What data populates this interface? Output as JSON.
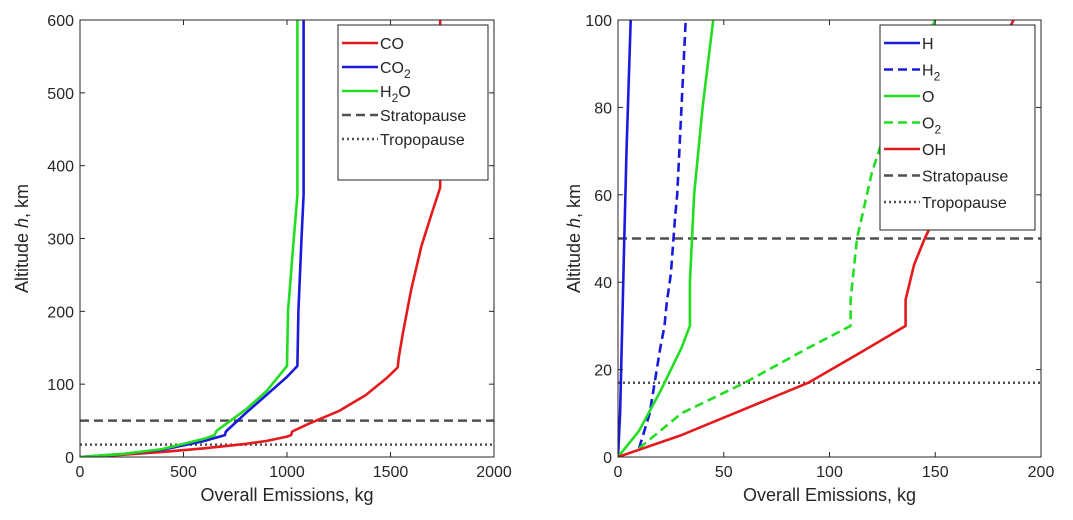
{
  "chart_data": [
    {
      "type": "line",
      "xlabel": "Overall Emissions, kg",
      "ylabel": "Altitude",
      "ylabel_italic": "h",
      "ylabel_unit": ", km",
      "xlim": [
        0,
        2000
      ],
      "ylim": [
        0,
        600
      ],
      "xticks": [
        0,
        500,
        1000,
        1500,
        2000
      ],
      "yticks": [
        0,
        100,
        200,
        300,
        400,
        500,
        600
      ],
      "legend_position": "top-right",
      "series": [
        {
          "name": "CO",
          "label_main": "CO",
          "label_sub": "",
          "color": "#e41a1c",
          "dash": "solid",
          "points": [
            [
              0,
              0
            ],
            [
              200,
              3
            ],
            [
              400,
              7
            ],
            [
              600,
              12
            ],
            [
              800,
              18
            ],
            [
              900,
              22
            ],
            [
              1000,
              28
            ],
            [
              1020,
              30
            ],
            [
              1025,
              35
            ],
            [
              1100,
              45
            ],
            [
              1250,
              63
            ],
            [
              1380,
              85
            ],
            [
              1480,
              108
            ],
            [
              1535,
              123
            ],
            [
              1540,
              137
            ],
            [
              1560,
              170
            ],
            [
              1600,
              230
            ],
            [
              1650,
              290
            ],
            [
              1700,
              335
            ],
            [
              1740,
              370
            ],
            [
              1740,
              600
            ]
          ]
        },
        {
          "name": "CO2",
          "label_main": "CO",
          "label_sub": "2",
          "color": "#1a1adc",
          "dash": "solid",
          "points": [
            [
              0,
              0
            ],
            [
              200,
              4
            ],
            [
              400,
              10
            ],
            [
              600,
              22
            ],
            [
              700,
              30
            ],
            [
              705,
              35
            ],
            [
              800,
              60
            ],
            [
              900,
              85
            ],
            [
              1000,
              110
            ],
            [
              1050,
              125
            ],
            [
              1055,
              200
            ],
            [
              1070,
              300
            ],
            [
              1080,
              360
            ],
            [
              1080,
              600
            ]
          ]
        },
        {
          "name": "H2O",
          "label_main": "H",
          "label_sub": "2",
          "label_tail": "O",
          "color": "#22dd22",
          "dash": "solid",
          "points": [
            [
              0,
              0
            ],
            [
              200,
              4
            ],
            [
              400,
              11
            ],
            [
              600,
              25
            ],
            [
              650,
              30
            ],
            [
              660,
              36
            ],
            [
              800,
              65
            ],
            [
              900,
              90
            ],
            [
              1000,
              125
            ],
            [
              1005,
              200
            ],
            [
              1030,
              290
            ],
            [
              1050,
              360
            ],
            [
              1050,
              600
            ]
          ]
        }
      ],
      "reference_lines": [
        {
          "name": "Stratopause",
          "value": 50,
          "color": "#505050",
          "dash": "dashed"
        },
        {
          "name": "Tropopause",
          "value": 17,
          "color": "#505050",
          "dash": "dotted"
        }
      ]
    },
    {
      "type": "line",
      "xlabel": "Overall Emissions, kg",
      "ylabel": "Altitude",
      "ylabel_italic": "h",
      "ylabel_unit": ", km",
      "xlim": [
        0,
        200
      ],
      "ylim": [
        0,
        100
      ],
      "xticks": [
        0,
        50,
        100,
        150,
        200
      ],
      "yticks": [
        0,
        20,
        40,
        60,
        80,
        100
      ],
      "legend_position": "top-right",
      "series": [
        {
          "name": "H",
          "label_main": "H",
          "label_sub": "",
          "color": "#1a1adc",
          "dash": "solid",
          "points": [
            [
              0,
              0
            ],
            [
              1,
              10
            ],
            [
              2,
              30
            ],
            [
              3,
              50
            ],
            [
              4,
              70
            ],
            [
              5,
              85
            ],
            [
              6,
              100
            ]
          ]
        },
        {
          "name": "H2",
          "label_main": "H",
          "label_sub": "2",
          "color": "#1a1adc",
          "dash": "dashed",
          "points": [
            [
              10,
              2
            ],
            [
              15,
              10
            ],
            [
              20,
              25
            ],
            [
              22,
              30
            ],
            [
              23,
              35
            ],
            [
              25,
              42
            ],
            [
              27,
              55
            ],
            [
              28,
              60
            ],
            [
              30,
              80
            ],
            [
              32,
              100
            ]
          ]
        },
        {
          "name": "O",
          "label_main": "O",
          "label_sub": "",
          "color": "#22dd22",
          "dash": "solid",
          "points": [
            [
              0,
              0
            ],
            [
              10,
              6
            ],
            [
              20,
              15
            ],
            [
              30,
              25
            ],
            [
              34,
              30
            ],
            [
              34,
              40
            ],
            [
              36,
              60
            ],
            [
              40,
              80
            ],
            [
              45,
              100
            ]
          ]
        },
        {
          "name": "O2",
          "label_main": "O",
          "label_sub": "2",
          "color": "#22dd22",
          "dash": "dashed",
          "points": [
            [
              10,
              2
            ],
            [
              30,
              10
            ],
            [
              60,
              17
            ],
            [
              90,
              25
            ],
            [
              110,
              30
            ],
            [
              110,
              36
            ],
            [
              113,
              50
            ],
            [
              120,
              65
            ],
            [
              130,
              80
            ],
            [
              140,
              90
            ],
            [
              150,
              100
            ]
          ]
        },
        {
          "name": "OH",
          "label_main": "OH",
          "label_sub": "",
          "color": "#e41a1c",
          "dash": "solid",
          "points": [
            [
              0,
              0
            ],
            [
              30,
              5
            ],
            [
              60,
              11
            ],
            [
              90,
              17
            ],
            [
              115,
              24
            ],
            [
              136,
              30
            ],
            [
              136,
              36
            ],
            [
              140,
              44
            ],
            [
              145,
              50
            ],
            [
              155,
              60
            ],
            [
              165,
              75
            ],
            [
              175,
              88
            ],
            [
              187,
              100
            ]
          ]
        }
      ],
      "reference_lines": [
        {
          "name": "Stratopause",
          "value": 50,
          "color": "#505050",
          "dash": "dashed"
        },
        {
          "name": "Tropopause",
          "value": 17,
          "color": "#505050",
          "dash": "dotted"
        }
      ]
    }
  ]
}
